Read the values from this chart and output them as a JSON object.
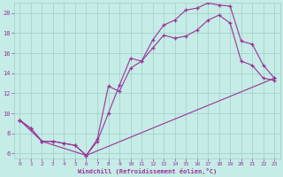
{
  "xlabel": "Windchill (Refroidissement éolien,°C)",
  "bg_color": "#c5ece6",
  "line_color": "#993399",
  "grid_color": "#9fcfca",
  "xlim": [
    -0.5,
    23.5
  ],
  "ylim": [
    5.5,
    21.0
  ],
  "yticks": [
    6,
    8,
    10,
    12,
    14,
    16,
    18,
    20
  ],
  "xticks": [
    0,
    1,
    2,
    3,
    4,
    5,
    6,
    7,
    8,
    9,
    10,
    11,
    12,
    13,
    14,
    15,
    16,
    17,
    18,
    19,
    20,
    21,
    22,
    23
  ],
  "line1_x": [
    0,
    1,
    2,
    3,
    4,
    5,
    6,
    7,
    8,
    9,
    10,
    11,
    12,
    13,
    14,
    15,
    16,
    17,
    18,
    19,
    20,
    21,
    22,
    23
  ],
  "line1_y": [
    9.3,
    8.5,
    7.2,
    7.2,
    7.0,
    6.8,
    5.8,
    7.2,
    10.0,
    12.8,
    15.5,
    15.2,
    17.3,
    18.8,
    19.3,
    20.3,
    20.5,
    21.0,
    20.8,
    20.7,
    17.2,
    16.9,
    14.8,
    13.5
  ],
  "line2_x": [
    0,
    1,
    2,
    3,
    4,
    5,
    6,
    7,
    8,
    9,
    10,
    11,
    12,
    13,
    14,
    15,
    16,
    17,
    18,
    19,
    20,
    21,
    22,
    23
  ],
  "line2_y": [
    9.3,
    8.5,
    7.2,
    7.2,
    7.0,
    6.8,
    5.8,
    7.4,
    12.7,
    12.2,
    14.5,
    15.2,
    16.5,
    17.8,
    17.5,
    17.7,
    18.3,
    19.3,
    19.8,
    19.0,
    15.2,
    14.8,
    13.5,
    13.3
  ],
  "line3_x": [
    0,
    2,
    6,
    23
  ],
  "line3_y": [
    9.3,
    7.2,
    5.8,
    13.5
  ]
}
